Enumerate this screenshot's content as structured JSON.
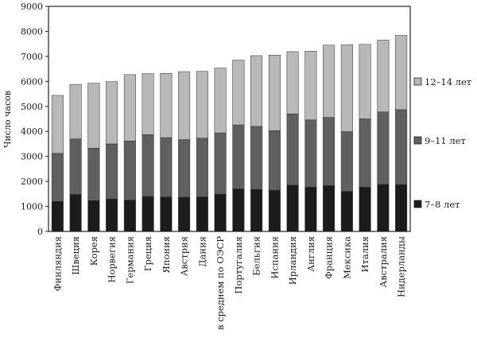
{
  "chart_data": {
    "type": "bar",
    "stacked": true,
    "ylabel": "Число часов",
    "ylim": [
      0,
      9000
    ],
    "yticks": [
      "0",
      "1000",
      "2000",
      "3000",
      "4000",
      "5000",
      "6000",
      "7000",
      "8000",
      "9000"
    ],
    "grid": false,
    "legend_position": "right",
    "categories": [
      "Финляндия",
      "Швеция",
      "Корея",
      "Норвегия",
      "Германия",
      "Греция",
      "Япония",
      "Австрия",
      "Дания",
      "в среднем по ОЭСР",
      "Португалия",
      "Бельгия",
      "Испания",
      "Ирландия",
      "Англия",
      "Франция",
      "Мексика",
      "Италия",
      "Австралия",
      "Нидерланды"
    ],
    "series": [
      {
        "name": "7–8 лет",
        "color": "#1c1c1c",
        "values": [
          1200,
          1480,
          1230,
          1300,
          1250,
          1400,
          1380,
          1370,
          1380,
          1490,
          1700,
          1680,
          1650,
          1850,
          1770,
          1830,
          1600,
          1770,
          1880,
          1870
        ]
      },
      {
        "name": "9–11 лет",
        "color": "#606060",
        "values": [
          1920,
          2220,
          2100,
          2200,
          2370,
          2470,
          2370,
          2300,
          2350,
          2450,
          2560,
          2520,
          2380,
          2850,
          2690,
          2730,
          2390,
          2730,
          2900,
          3000
        ]
      },
      {
        "name": "12–14 лет",
        "color": "#b8b8b8",
        "values": [
          2320,
          2180,
          2600,
          2490,
          2650,
          2440,
          2570,
          2720,
          2670,
          2590,
          2590,
          2830,
          3020,
          2490,
          2750,
          2890,
          3480,
          2980,
          2870,
          2970
        ]
      }
    ]
  }
}
